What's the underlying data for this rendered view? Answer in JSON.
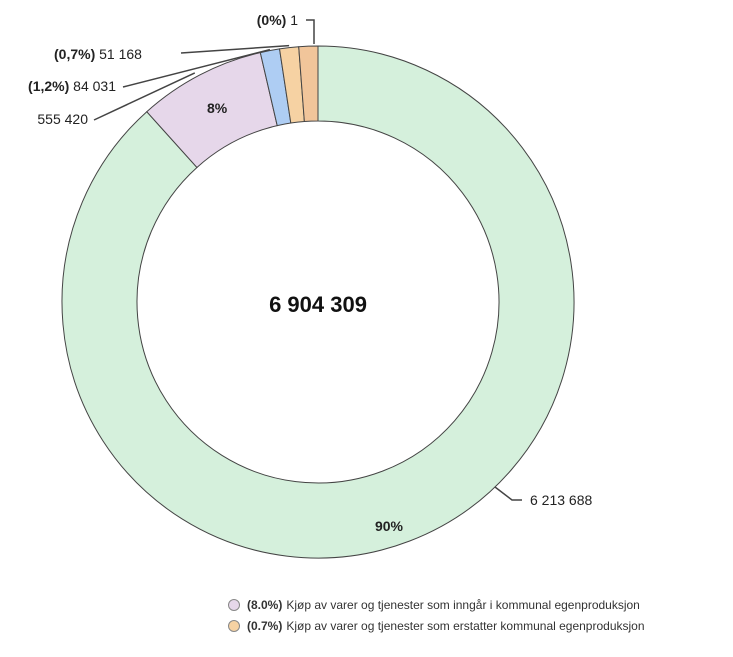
{
  "chart_data": {
    "type": "pie",
    "donut": true,
    "total_label": "6 904 309",
    "slices": [
      {
        "value": 6213688,
        "value_label": "6 213 688",
        "pct_label": "90%",
        "color": "#d5f0dc"
      },
      {
        "value": 555420,
        "value_label": "555 420",
        "pct_label": "8%",
        "color": "#e6d7ea"
      },
      {
        "value": 84031,
        "value_label": "84 031",
        "pct_prefix": "(1,2%)",
        "color": "#aecdf3"
      },
      {
        "value": 51168,
        "value_label": "51 168",
        "pct_prefix": "(0,7%)",
        "color": "#f6d2a3"
      },
      {
        "value": 1,
        "value_label": "1",
        "pct_prefix": "(0%)",
        "color": "#f1c59a"
      }
    ],
    "legend": [
      {
        "pct": "(8.0%)",
        "text": "Kjøp av varer og tjenester som inngår i kommunal egenproduksjon",
        "color": "#e6d7ea"
      },
      {
        "pct": "(0.7%)",
        "text": "Kjøp av varer og tjenester som erstatter kommunal egenproduksjon",
        "color": "#f6d2a3"
      }
    ]
  }
}
